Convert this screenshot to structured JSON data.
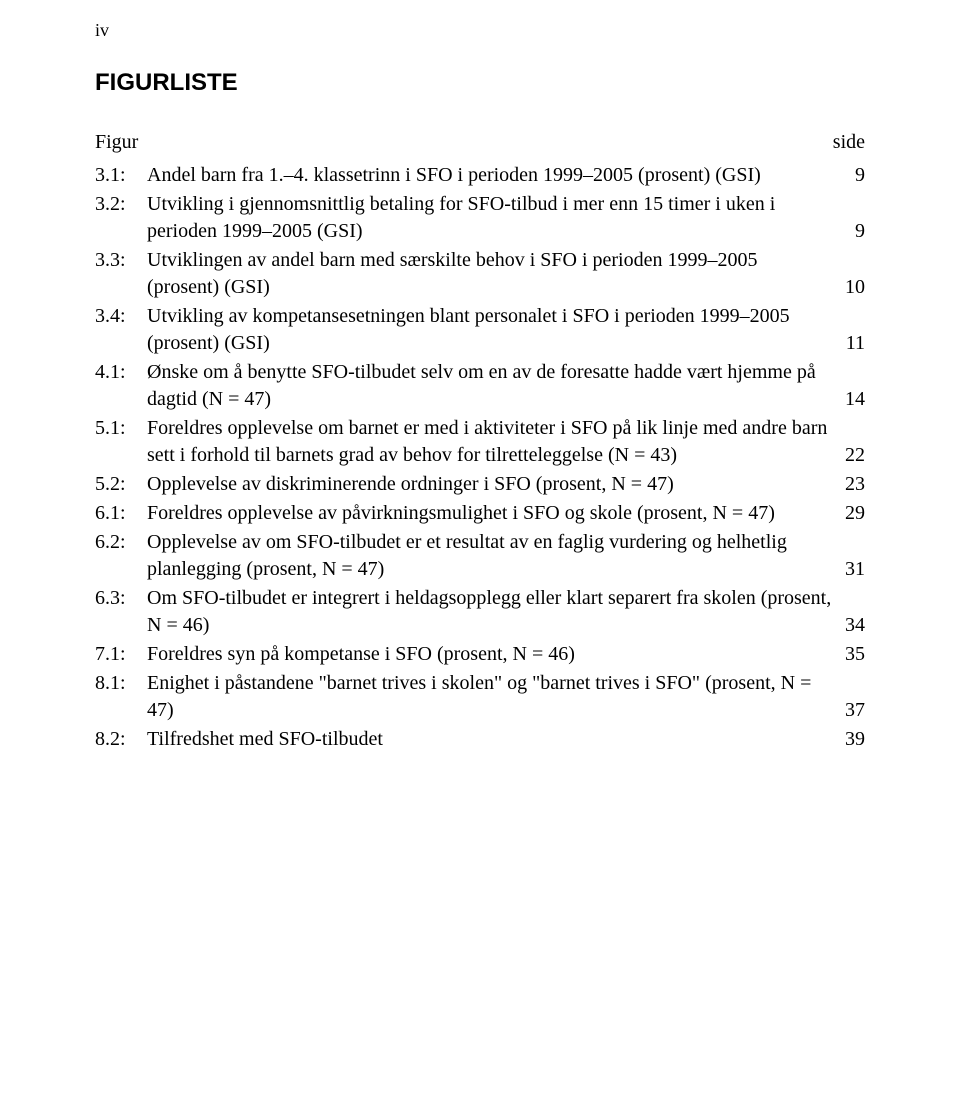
{
  "page_number": "iv",
  "title": "FIGURLISTE",
  "header": {
    "left": "Figur",
    "right": "side"
  },
  "entries": [
    {
      "num": "3.1:",
      "text": "Andel barn fra 1.–4. klassetrinn i SFO i perioden 1999–2005 (prosent) (GSI)",
      "page": "9"
    },
    {
      "num": "3.2:",
      "text": "Utvikling i gjennomsnittlig betaling for SFO-tilbud i mer enn 15 timer i uken i perioden 1999–2005 (GSI)",
      "page": "9"
    },
    {
      "num": "3.3:",
      "text": "Utviklingen av andel barn med særskilte behov i SFO i perioden 1999–2005 (prosent) (GSI)",
      "page": "10"
    },
    {
      "num": "3.4:",
      "text": "Utvikling av kompetansesetningen blant personalet i SFO i perioden 1999–2005 (prosent) (GSI)",
      "page": "11"
    },
    {
      "num": "4.1:",
      "text": "Ønske om å benytte SFO-tilbudet selv om en av de foresatte hadde vært hjemme på dagtid (N = 47)",
      "page": "14"
    },
    {
      "num": "5.1:",
      "text": "Foreldres opplevelse om barnet er med i aktiviteter i SFO på lik linje med andre barn sett i forhold til barnets grad av behov for tilretteleggelse (N = 43)",
      "page": "22"
    },
    {
      "num": "5.2:",
      "text": "Opplevelse av diskriminerende ordninger i SFO (prosent, N = 47)",
      "page": "23"
    },
    {
      "num": "6.1:",
      "text": "Foreldres opplevelse av påvirkningsmulighet i SFO og skole (prosent, N = 47)",
      "page": "29"
    },
    {
      "num": "6.2:",
      "text": "Opplevelse av om SFO-tilbudet er et resultat av en faglig vurdering og helhetlig planlegging (prosent, N = 47)",
      "page": "31"
    },
    {
      "num": "6.3:",
      "text": "Om SFO-tilbudet er integrert i heldagsopplegg eller klart separert fra skolen (prosent, N = 46)",
      "page": "34"
    },
    {
      "num": "7.1:",
      "text": "Foreldres syn på kompetanse i SFO (prosent, N = 46)",
      "page": "35"
    },
    {
      "num": "8.1:",
      "text": "Enighet i påstandene \"barnet trives i skolen\" og \"barnet trives i SFO\" (prosent, N = 47)",
      "page": "37"
    },
    {
      "num": "8.2:",
      "text": "Tilfredshet med SFO-tilbudet",
      "page": "39"
    }
  ]
}
